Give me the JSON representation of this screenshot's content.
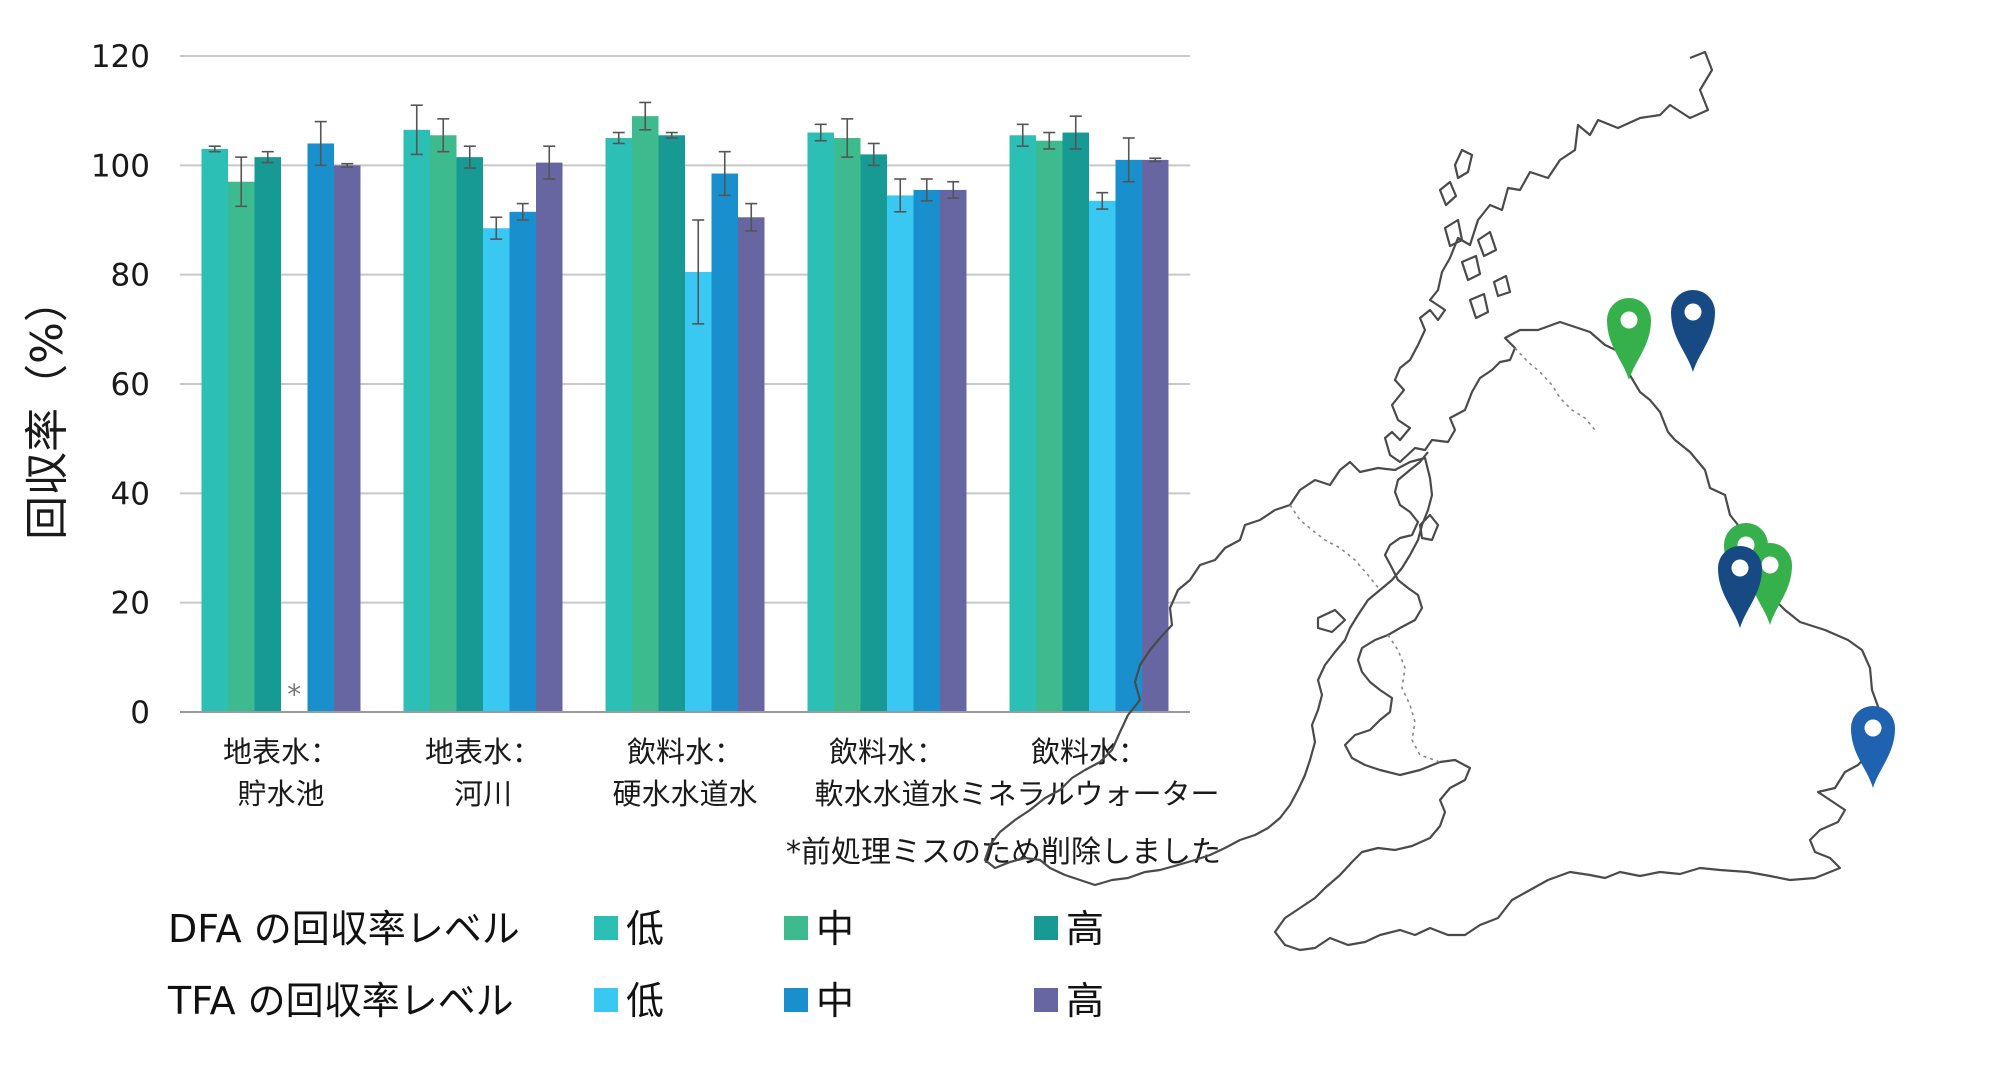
{
  "chart_data": {
    "type": "bar",
    "ylabel": "回収率（%）",
    "ylim": [
      0,
      120
    ],
    "yticks": [
      "0",
      "20",
      "40",
      "60",
      "80",
      "100",
      "120"
    ],
    "grid": true,
    "categories": [
      {
        "line1": "地表水：",
        "line2": "貯水池"
      },
      {
        "line1": "地表水：",
        "line2": "河川"
      },
      {
        "line1": "飲料水：",
        "line2": "硬水水道水"
      },
      {
        "line1": "飲料水：",
        "line2": "軟水水道水"
      },
      {
        "line1": "飲料水：",
        "line2": "ミネラルウォーター"
      }
    ],
    "series": [
      {
        "name": "低",
        "group": "DFA",
        "color": "#2bbfb5",
        "values": [
          103,
          106.5,
          105,
          106,
          105.5
        ],
        "errors": [
          0.5,
          4.5,
          1,
          1.5,
          2
        ]
      },
      {
        "name": "中",
        "group": "DFA",
        "color": "#3dbb8e",
        "values": [
          97,
          105.5,
          109,
          105,
          104.5
        ],
        "errors": [
          4.5,
          3,
          2.5,
          3.5,
          1.5
        ]
      },
      {
        "name": "高",
        "group": "DFA",
        "color": "#179a94",
        "values": [
          101.5,
          101.5,
          105.5,
          102,
          106
        ],
        "errors": [
          1,
          2,
          0.5,
          2,
          3
        ]
      },
      {
        "name": "低",
        "group": "TFA",
        "color": "#38c8f2",
        "values": [
          null,
          88.5,
          80.5,
          94.5,
          93.5
        ],
        "errors": [
          0,
          2,
          9.5,
          3,
          1.5
        ]
      },
      {
        "name": "中",
        "group": "TFA",
        "color": "#1a8fce",
        "values": [
          104,
          91.5,
          98.5,
          95.5,
          101
        ],
        "errors": [
          4,
          1.5,
          4,
          2,
          4
        ]
      },
      {
        "name": "高",
        "group": "TFA",
        "color": "#6766a3",
        "values": [
          100,
          100.5,
          90.5,
          95.5,
          101
        ],
        "errors": [
          0.3,
          3,
          2.5,
          1.5,
          0.3
        ]
      }
    ],
    "missing_marker": "*",
    "footnote": "*前処理ミスのため削除しました",
    "legend": {
      "rows": [
        {
          "label": "DFA の回収率レベル",
          "items": [
            "低",
            "中",
            "高"
          ],
          "colors": [
            "#2bbfb5",
            "#3dbb8e",
            "#179a94"
          ]
        },
        {
          "label": "TFA の回収率レベル",
          "items": [
            "低",
            "中",
            "高"
          ],
          "colors": [
            "#38c8f2",
            "#1a8fce",
            "#6766a3"
          ]
        }
      ]
    }
  },
  "map": {
    "pin_colors": {
      "green": "#35b04a",
      "blue": "#1e62b0",
      "navy": "#174a82"
    }
  }
}
